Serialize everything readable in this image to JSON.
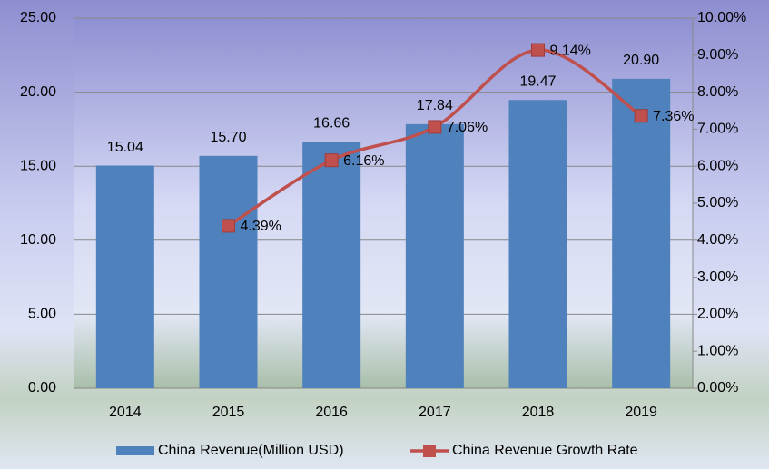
{
  "chart_data": {
    "type": "bar",
    "categories": [
      "2014",
      "2015",
      "2016",
      "2017",
      "2018",
      "2019"
    ],
    "series": [
      {
        "name": "China Revenue(Million USD)",
        "color": "#4f81bd",
        "type": "bar",
        "values": [
          15.04,
          15.7,
          16.66,
          17.84,
          19.47,
          20.9
        ],
        "value_labels": [
          "15.04",
          "15.70",
          "16.66",
          "17.84",
          "19.47",
          "20.90"
        ]
      },
      {
        "name": "China Revenue Growth Rate",
        "color": "#c0504d",
        "type": "line",
        "axis": "y2",
        "values": [
          null,
          4.39,
          6.16,
          7.06,
          9.14,
          7.36
        ],
        "value_labels": [
          null,
          "4.39%",
          "6.16%",
          "7.06%",
          "9.14%",
          "7.36%"
        ]
      }
    ],
    "ylim": [
      0,
      25
    ],
    "yticks": [
      {
        "value": 0,
        "label": "0.00"
      },
      {
        "value": 5,
        "label": "5.00"
      },
      {
        "value": 10,
        "label": "10.00"
      },
      {
        "value": 15,
        "label": "15.00"
      },
      {
        "value": 20,
        "label": "20.00"
      },
      {
        "value": 25,
        "label": "25.00"
      }
    ],
    "y2lim": [
      0,
      10
    ],
    "y2ticks": [
      {
        "value": 0,
        "label": "0.00%"
      },
      {
        "value": 1,
        "label": "1.00%"
      },
      {
        "value": 2,
        "label": "2.00%"
      },
      {
        "value": 3,
        "label": "3.00%"
      },
      {
        "value": 4,
        "label": "4.00%"
      },
      {
        "value": 5,
        "label": "5.00%"
      },
      {
        "value": 6,
        "label": "6.00%"
      },
      {
        "value": 7,
        "label": "7.00%"
      },
      {
        "value": 8,
        "label": "8.00%"
      },
      {
        "value": 9,
        "label": "9.00%"
      },
      {
        "value": 10,
        "label": "10.00%"
      }
    ],
    "grid": true
  }
}
